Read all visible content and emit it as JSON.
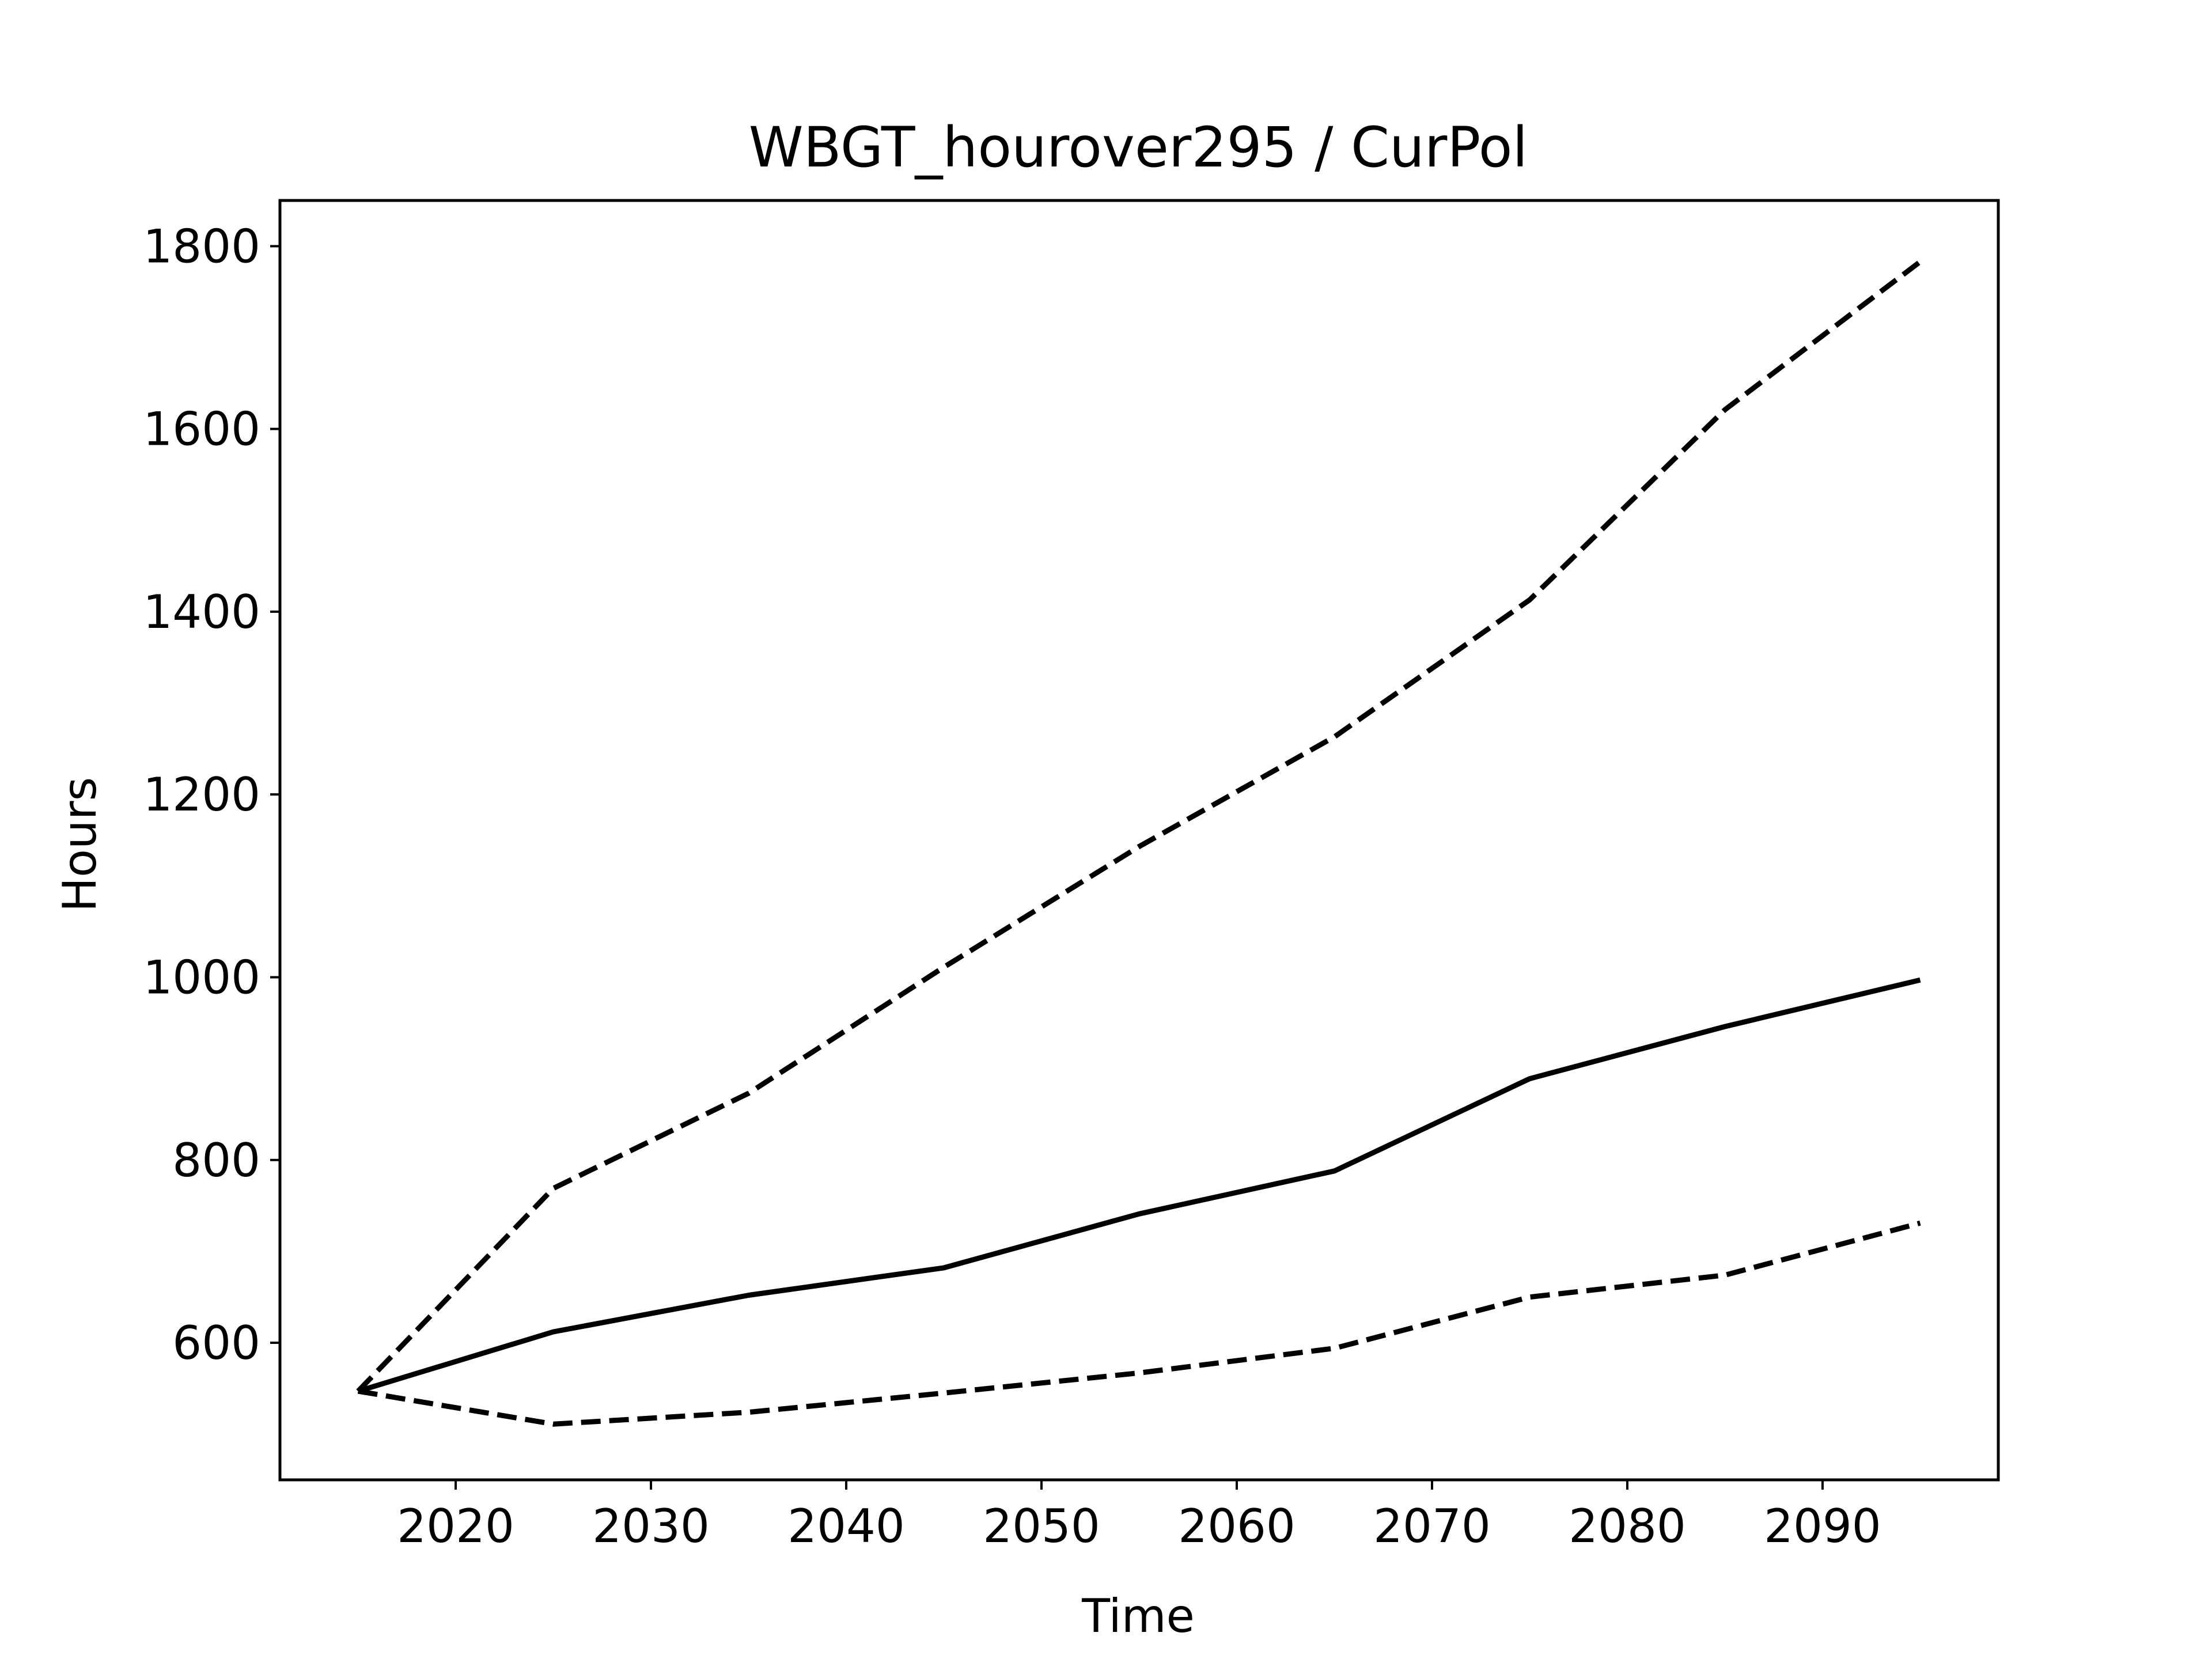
{
  "chart_data": {
    "type": "line",
    "title": "WBGT_hourover295 / CurPol",
    "xlabel": "Time",
    "ylabel": "Hours",
    "x": [
      2015,
      2025,
      2035,
      2045,
      2055,
      2065,
      2075,
      2085,
      2095
    ],
    "series": [
      {
        "style": "solid",
        "color": "#000000",
        "values": [
          547,
          612,
          652,
          682,
          741,
          788,
          889,
          946,
          997
        ]
      },
      {
        "style": "dashed",
        "color": "#000000",
        "values": [
          547,
          769,
          873,
          1011,
          1143,
          1263,
          1413,
          1621,
          1783
        ]
      },
      {
        "style": "dashed",
        "color": "#000000",
        "values": [
          547,
          511,
          524,
          545,
          567,
          594,
          650,
          674,
          731
        ]
      }
    ],
    "xlim": [
      2011,
      2099
    ],
    "ylim": [
      450,
      1850
    ],
    "xticks": [
      2020,
      2030,
      2040,
      2050,
      2060,
      2070,
      2080,
      2090
    ],
    "yticks": [
      600,
      800,
      1000,
      1200,
      1400,
      1600,
      1800
    ],
    "grid": false,
    "legend": "none"
  }
}
